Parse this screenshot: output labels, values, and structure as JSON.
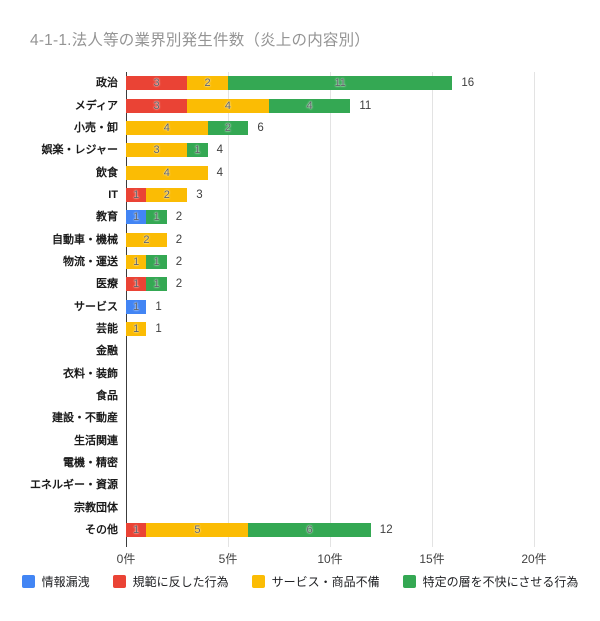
{
  "title": "4-1-1.法人等の業界別発生件数（炎上の内容別）",
  "colors": {
    "series_blue": "#4285F4",
    "series_red": "#EA4335",
    "series_yellow": "#FBBC04",
    "series_green": "#34A853"
  },
  "chart_data": {
    "type": "bar",
    "orientation": "horizontal",
    "stacked": true,
    "title": "4-1-1.法人等の業界別発生件数（炎上の内容別）",
    "categories": [
      "政治",
      "メディア",
      "小売・卸",
      "娯楽・レジャー",
      "飲食",
      "IT",
      "教育",
      "自動車・機械",
      "物流・運送",
      "医療",
      "サービス",
      "芸能",
      "金融",
      "衣料・装飾",
      "食品",
      "建設・不動産",
      "生活関連",
      "電機・精密",
      "エネルギー・資源",
      "宗教団体",
      "その他"
    ],
    "series": [
      {
        "name": "情報漏洩",
        "color": "#4285F4",
        "values": [
          0,
          0,
          0,
          0,
          0,
          0,
          1,
          0,
          0,
          0,
          1,
          0,
          0,
          0,
          0,
          0,
          0,
          0,
          0,
          0,
          0
        ]
      },
      {
        "name": "規範に反した行為",
        "color": "#EA4335",
        "values": [
          3,
          3,
          0,
          0,
          0,
          1,
          0,
          0,
          0,
          1,
          0,
          0,
          0,
          0,
          0,
          0,
          0,
          0,
          0,
          0,
          1
        ]
      },
      {
        "name": "サービス・商品不備",
        "color": "#FBBC04",
        "values": [
          2,
          4,
          4,
          3,
          4,
          2,
          0,
          2,
          1,
          0,
          0,
          1,
          0,
          0,
          0,
          0,
          0,
          0,
          0,
          0,
          5
        ]
      },
      {
        "name": "特定の層を不快にさせる行為",
        "color": "#34A853",
        "values": [
          11,
          4,
          2,
          1,
          0,
          0,
          1,
          0,
          1,
          1,
          0,
          0,
          0,
          0,
          0,
          0,
          0,
          0,
          0,
          0,
          6
        ]
      }
    ],
    "totals": [
      16,
      11,
      6,
      4,
      4,
      3,
      2,
      2,
      2,
      2,
      1,
      1,
      0,
      0,
      0,
      0,
      0,
      0,
      0,
      0,
      12
    ],
    "x_ticks": [
      {
        "value": 0,
        "label": "0件"
      },
      {
        "value": 5,
        "label": "5件"
      },
      {
        "value": 10,
        "label": "10件"
      },
      {
        "value": 15,
        "label": "15件"
      },
      {
        "value": 20,
        "label": "20件"
      }
    ],
    "xlim": [
      0,
      20
    ],
    "unit_suffix": "件",
    "grid": true,
    "legend_position": "bottom"
  }
}
